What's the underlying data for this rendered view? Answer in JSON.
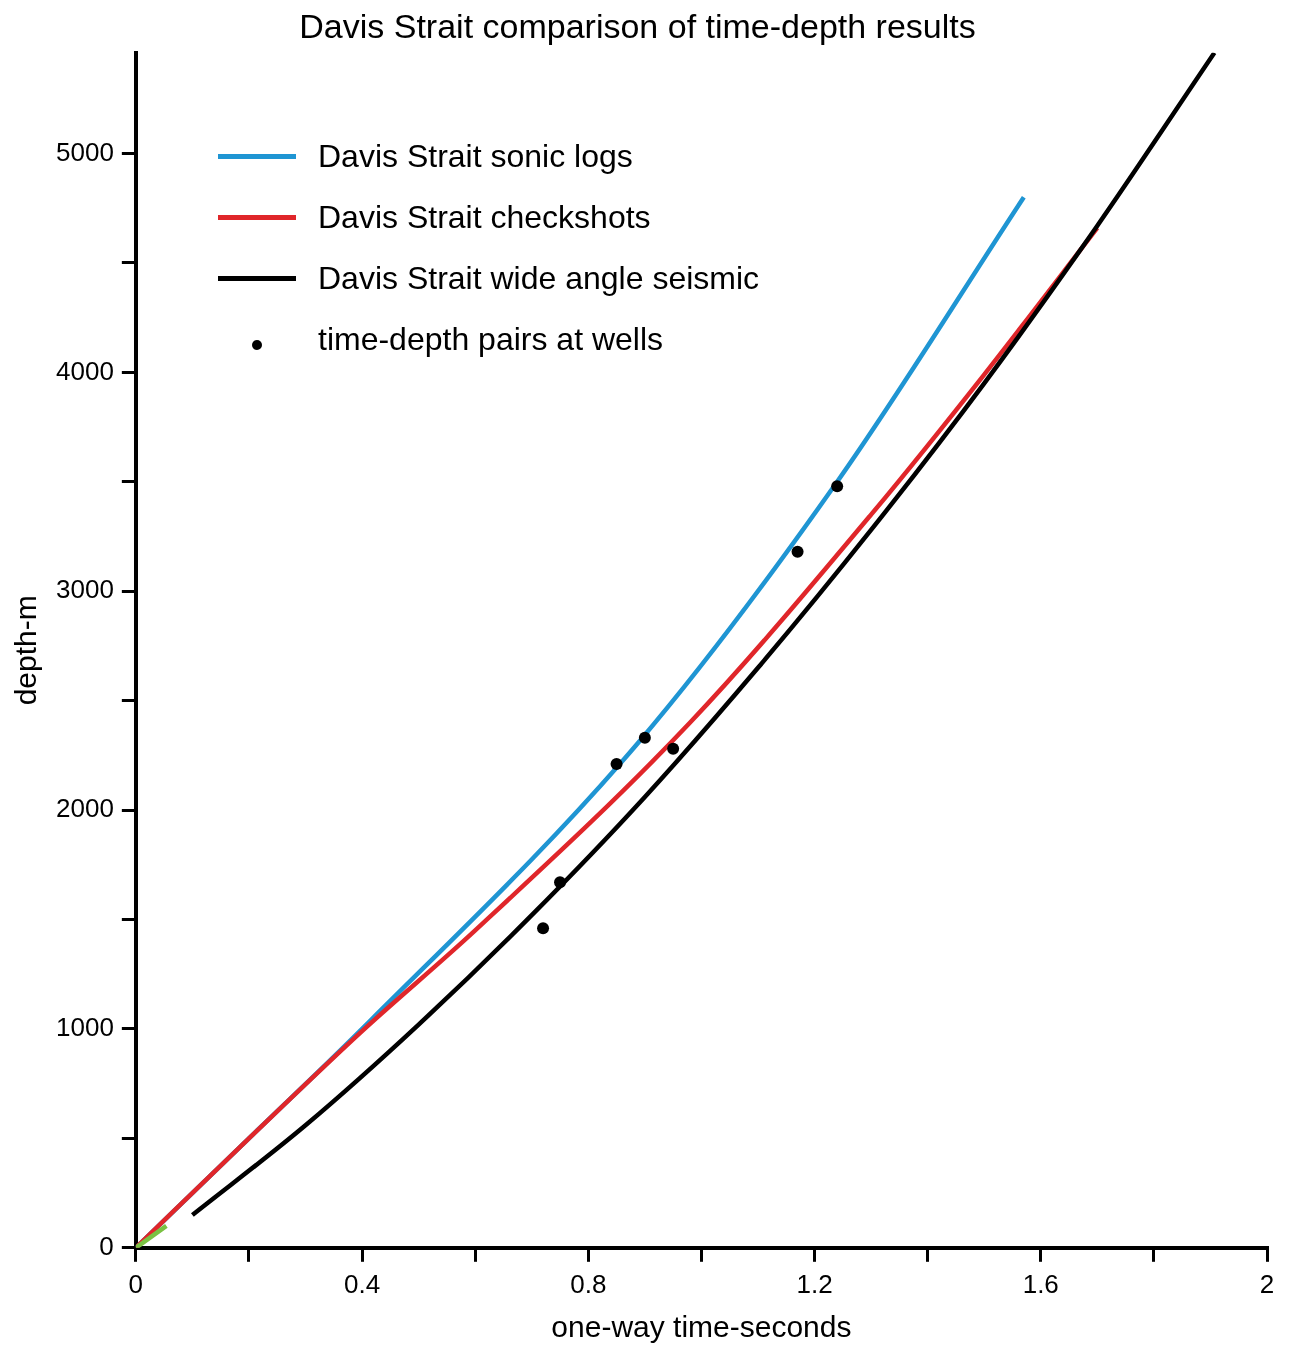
{
  "chart_data": {
    "type": "line",
    "title": "Davis Strait comparison of time-depth results",
    "xlabel": "one-way time-seconds",
    "ylabel": "depth-m",
    "xlim": [
      0,
      2
    ],
    "ylim": [
      0,
      5460
    ],
    "xticks": [
      0,
      {
        "value": 0.2,
        "label": null
      },
      0.4,
      {
        "value": 0.6,
        "label": null
      },
      0.8,
      {
        "value": 1.0,
        "label": null
      },
      1.2,
      {
        "value": 1.4,
        "label": null
      },
      1.6,
      {
        "value": 1.8,
        "label": null
      },
      2
    ],
    "yticks": [
      0,
      {
        "value": 500,
        "label": null
      },
      1000,
      {
        "value": 1500,
        "label": null
      },
      2000,
      {
        "value": 2500,
        "label": null
      },
      3000,
      {
        "value": 3500,
        "label": null
      },
      4000,
      {
        "value": 4500,
        "label": null
      },
      5000
    ],
    "grid": false,
    "legend": "top left",
    "line_style": "solid",
    "series": [
      {
        "name": "Davis Strait sonic logs",
        "color": "#1f95d3",
        "type": "line",
        "marker": "none",
        "x": [
          0,
          0.2,
          0.4,
          0.889,
          1.24,
          1.57
        ],
        "values": [
          0,
          500,
          1000,
          2310,
          3500,
          4800
        ]
      },
      {
        "name": "Davis Strait checkshots",
        "color": "#e0262a",
        "type": "line",
        "marker": "none",
        "x": [
          0,
          0.2,
          0.4,
          0.6,
          0.98,
          1.3,
          1.5,
          1.7
        ],
        "values": [
          0,
          500,
          990,
          1450,
          2400,
          3350,
          3990,
          4660
        ]
      },
      {
        "name": "Davis Strait wide angle seismic",
        "color": "#000000",
        "type": "line",
        "marker": "none",
        "x": [
          0.1,
          0.3,
          0.5,
          0.7,
          0.9,
          1.1,
          1.3,
          1.5,
          1.7,
          1.907
        ],
        "values": [
          150,
          560,
          1020,
          1520,
          2060,
          2650,
          3280,
          3950,
          4670,
          5460
        ]
      },
      {
        "color": "#7ac143",
        "type": "line",
        "marker": "none",
        "x": [
          0,
          0.054
        ],
        "values": [
          0,
          100
        ]
      },
      {
        "name": "time-depth pairs at wells",
        "color": "#000000",
        "type": "scatter",
        "marker": "circle",
        "x": [
          0.72,
          0.75,
          0.85,
          0.9,
          0.95,
          1.17,
          1.24
        ],
        "values": [
          1460,
          1670,
          2210,
          2330,
          2280,
          3180,
          3480
        ]
      }
    ]
  }
}
